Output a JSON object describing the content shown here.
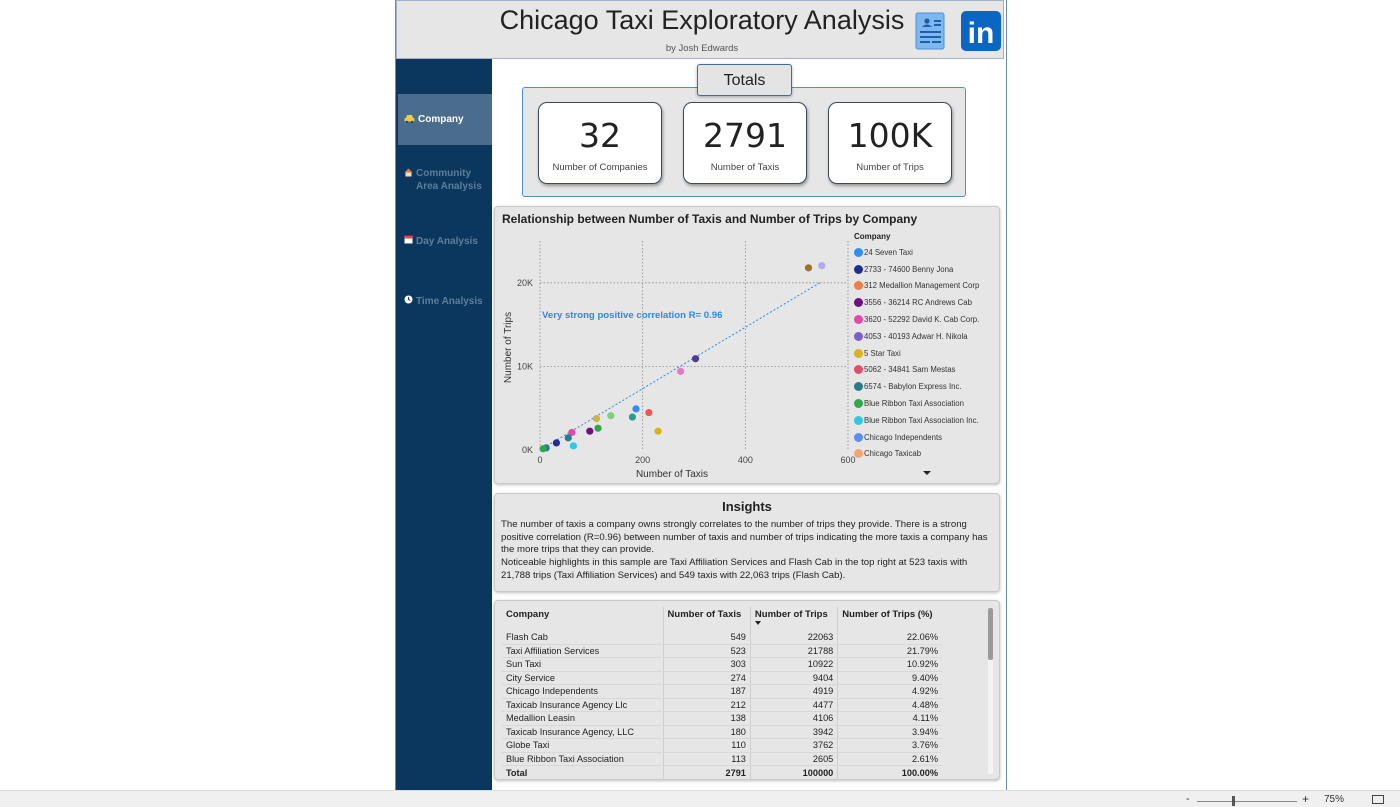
{
  "header": {
    "title": "Chicago Taxi Exploratory Analysis",
    "subtitle": "by Josh Edwards",
    "icons": [
      "document-icon",
      "linkedin-icon"
    ],
    "linkedin_text": "in"
  },
  "sidebar": {
    "items": [
      {
        "label": "Company",
        "icon": "taxi-icon",
        "active": true
      },
      {
        "label": "Community Area Analysis",
        "icon": "house-icon",
        "active": false
      },
      {
        "label": "Day Analysis",
        "icon": "calendar-icon",
        "active": false
      },
      {
        "label": "Time Analysis",
        "icon": "clock-icon",
        "active": false
      }
    ]
  },
  "totals": {
    "tab_label": "Totals",
    "cards": [
      {
        "value": "32",
        "label": "Number of Companies"
      },
      {
        "value": "2791",
        "label": "Number of Taxis"
      },
      {
        "value": "100K",
        "label": "Number of Trips"
      }
    ]
  },
  "chart_data": {
    "type": "scatter",
    "title": "Relationship between Number of Taxis and Number of Trips by Company",
    "xlabel": "Number of Taxis",
    "ylabel": "Number of Trips",
    "xlim": [
      0,
      600
    ],
    "ylim": [
      0,
      25000
    ],
    "x_ticks": [
      0,
      200,
      400,
      600
    ],
    "x_tick_labels": [
      "0",
      "200",
      "400",
      "600"
    ],
    "y_ticks": [
      0,
      10000,
      20000
    ],
    "y_tick_labels": [
      "0K",
      "10K",
      "20K"
    ],
    "grid": true,
    "annotation": "Very strong positive correlation R= 0.96",
    "trendline": {
      "x": [
        0,
        545
      ],
      "y": [
        0,
        20000
      ],
      "color": "#2b8be6"
    },
    "legend": {
      "title": "Company",
      "placement": "right",
      "entries": [
        {
          "name": "24 Seven Taxi",
          "color": "#2f8cf0"
        },
        {
          "name": "2733 - 74600 Benny Jona",
          "color": "#1d2f8f"
        },
        {
          "name": "312 Medallion Management Corp",
          "color": "#f07d43"
        },
        {
          "name": "3556 - 36214 RC Andrews Cab",
          "color": "#6d1080"
        },
        {
          "name": "3620 - 52292 David K. Cab Corp.",
          "color": "#e349a6"
        },
        {
          "name": "4053 - 40193 Adwar H. Nikola",
          "color": "#7c5fce"
        },
        {
          "name": "5 Star Taxi",
          "color": "#d9b21c"
        },
        {
          "name": "5062 - 34841 Sam Mestas",
          "color": "#e0506e"
        },
        {
          "name": "6574 - Babylon Express Inc.",
          "color": "#2a7b8a"
        },
        {
          "name": "Blue Ribbon Taxi Association",
          "color": "#2ea84c"
        },
        {
          "name": "Blue Ribbon Taxi Association Inc.",
          "color": "#2fc7e6"
        },
        {
          "name": "Chicago Independents",
          "color": "#5a8ef0"
        },
        {
          "name": "Chicago Taxicab",
          "color": "#f5a572"
        }
      ]
    },
    "points": [
      {
        "x": 549,
        "y": 22063,
        "color": "#b5a8f0"
      },
      {
        "x": 523,
        "y": 21788,
        "color": "#9a7328"
      },
      {
        "x": 303,
        "y": 10922,
        "color": "#4a3e8e"
      },
      {
        "x": 274,
        "y": 9404,
        "color": "#e879c4"
      },
      {
        "x": 212,
        "y": 4477,
        "color": "#f05454"
      },
      {
        "x": 187,
        "y": 4919,
        "color": "#2f8cf0"
      },
      {
        "x": 180,
        "y": 3942,
        "color": "#2a9d8f"
      },
      {
        "x": 138,
        "y": 4106,
        "color": "#7ed07a"
      },
      {
        "x": 110,
        "y": 3762,
        "color": "#c9b44a"
      },
      {
        "x": 113,
        "y": 2605,
        "color": "#2ea84c"
      },
      {
        "x": 230,
        "y": 2250,
        "color": "#d9b21c"
      },
      {
        "x": 97,
        "y": 2250,
        "color": "#6d1080"
      },
      {
        "x": 62,
        "y": 2100,
        "color": "#e349a6"
      },
      {
        "x": 55,
        "y": 1450,
        "color": "#2a7b8a"
      },
      {
        "x": 65,
        "y": 500,
        "color": "#2fc7e6"
      },
      {
        "x": 32,
        "y": 850,
        "color": "#1d2f8f"
      },
      {
        "x": 12,
        "y": 250,
        "color": "#2a7b8a"
      },
      {
        "x": 6,
        "y": 150,
        "color": "#2ea84c"
      }
    ]
  },
  "insights": {
    "title": "Insights",
    "paragraph1": "The number of taxis a company owns strongly correlates to the number of trips they provide. There is a strong positive correlation (R=0.96) between number of taxis and number of trips indicating the more taxis a company has the more trips that they can provide.",
    "paragraph2": "Noticeable highlights in this sample are Taxi Affiliation Services and Flash Cab in the top right at 523 taxis with 21,788 trips (Taxi Affiliation Services) and 549 taxis with 22,063 trips (Flash Cab)."
  },
  "table": {
    "columns": [
      "Company",
      "Number of Taxis",
      "Number of Trips",
      "Number of Trips (%)"
    ],
    "sorted_column": "Number of Trips",
    "rows": [
      [
        "Flash Cab",
        "549",
        "22063",
        "22.06%"
      ],
      [
        "Taxi Affiliation Services",
        "523",
        "21788",
        "21.79%"
      ],
      [
        "Sun Taxi",
        "303",
        "10922",
        "10.92%"
      ],
      [
        "City Service",
        "274",
        "9404",
        "9.40%"
      ],
      [
        "Chicago Independents",
        "187",
        "4919",
        "4.92%"
      ],
      [
        "Taxicab Insurance Agency Llc",
        "212",
        "4477",
        "4.48%"
      ],
      [
        "Medallion Leasin",
        "138",
        "4106",
        "4.11%"
      ],
      [
        "Taxicab Insurance Agency, LLC",
        "180",
        "3942",
        "3.94%"
      ],
      [
        "Globe Taxi",
        "110",
        "3762",
        "3.76%"
      ],
      [
        "Blue Ribbon Taxi Association",
        "113",
        "2605",
        "2.61%"
      ]
    ],
    "total": [
      "Total",
      "2791",
      "100000",
      "100.00%"
    ]
  },
  "statusbar": {
    "zoom_minus": "-",
    "zoom_plus": "+",
    "zoom_level": "75%",
    "zoom_fraction": 0.75
  }
}
